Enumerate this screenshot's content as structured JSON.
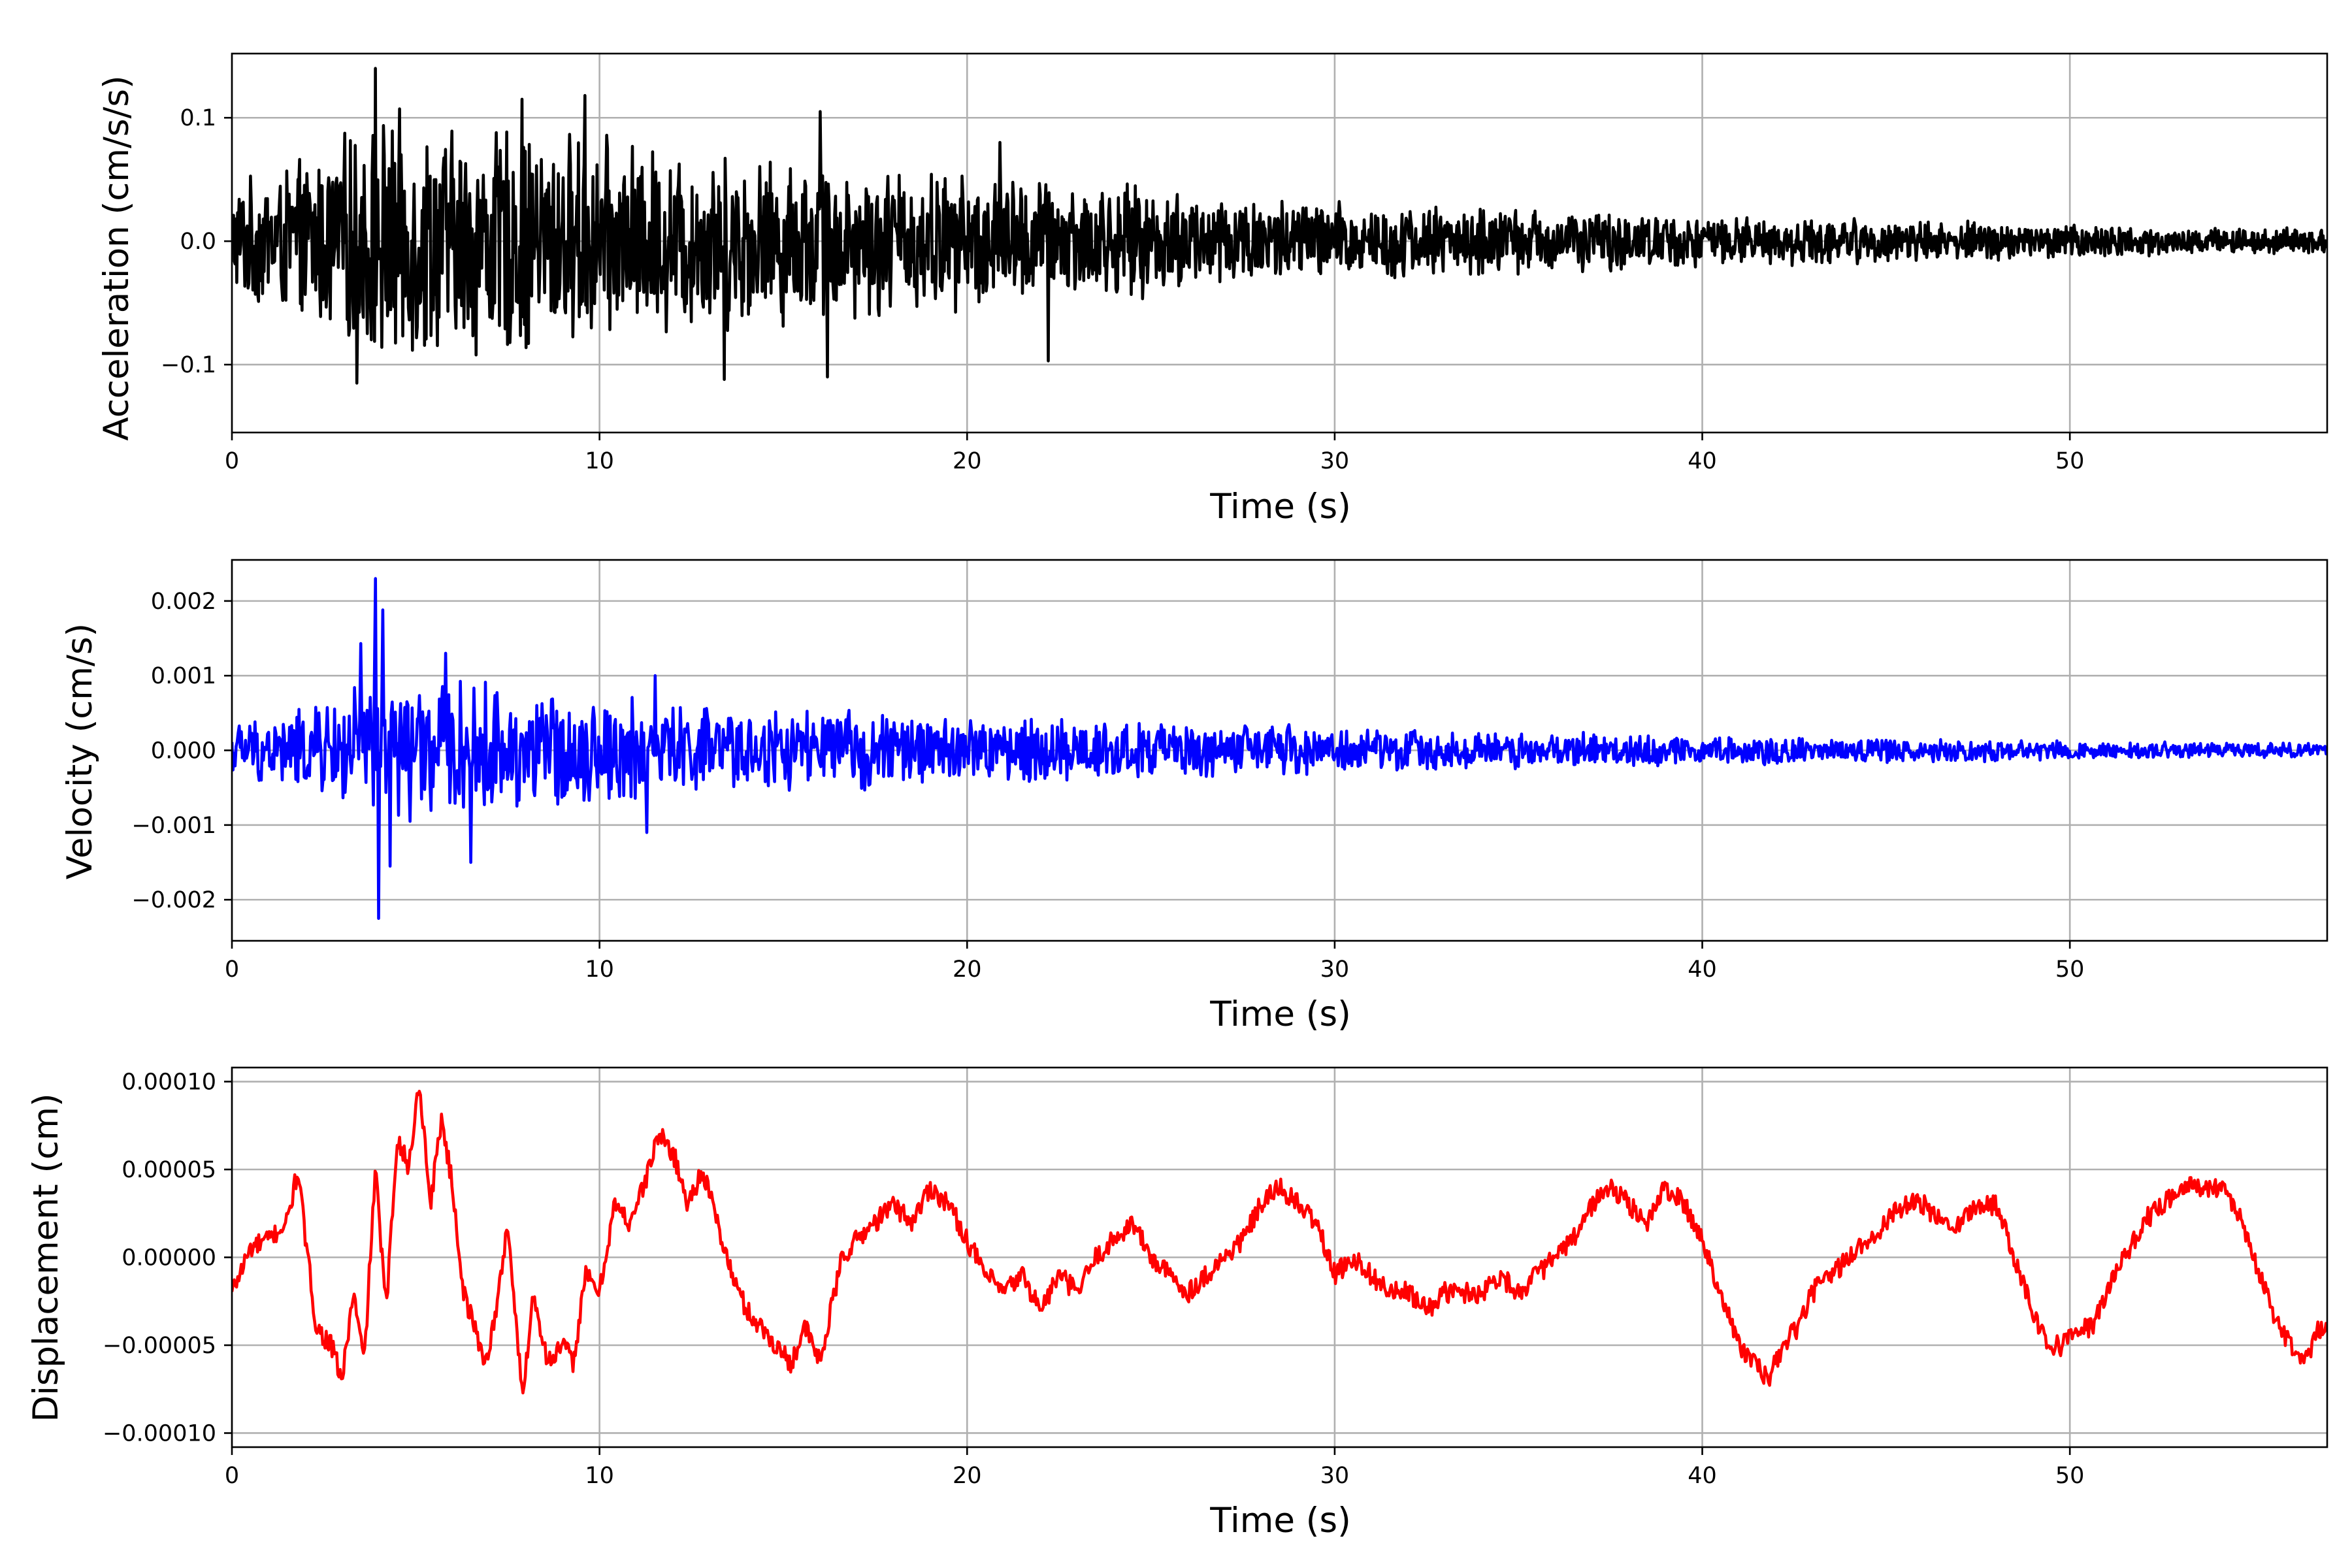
{
  "chart_data": [
    {
      "type": "line",
      "xlabel": "Time (s)",
      "ylabel": "Acceleration (cm/s/s)",
      "xlim": [
        0,
        57
      ],
      "ylim": [
        -0.155,
        0.152
      ],
      "xticks": [
        0,
        10,
        20,
        30,
        40,
        50
      ],
      "xtick_labels": [
        "0",
        "10",
        "20",
        "30",
        "40",
        "50"
      ],
      "yticks": [
        -0.1,
        0.0,
        0.1
      ],
      "ytick_labels": [
        "−0.1",
        "0.0",
        "0.1"
      ],
      "grid": true,
      "color": "#000000",
      "envelope": {
        "t": [
          0,
          2,
          4,
          6,
          8,
          10,
          12,
          14,
          16,
          18,
          20,
          22,
          24,
          26,
          28,
          30,
          32,
          34,
          36,
          38,
          40,
          42,
          44,
          46,
          48,
          50,
          52,
          54,
          56,
          57
        ],
        "amplitude": [
          0.05,
          0.07,
          0.11,
          0.1,
          0.1,
          0.09,
          0.08,
          0.075,
          0.07,
          0.065,
          0.06,
          0.055,
          0.05,
          0.045,
          0.04,
          0.035,
          0.032,
          0.03,
          0.028,
          0.025,
          0.022,
          0.02,
          0.02,
          0.018,
          0.017,
          0.015,
          0.013,
          0.012,
          0.011,
          0.01
        ]
      },
      "peaks": [
        {
          "t": 3.9,
          "value": 0.14
        },
        {
          "t": 3.4,
          "value": -0.115
        },
        {
          "t": 13.4,
          "value": -0.112
        },
        {
          "t": 16.2,
          "value": -0.11
        },
        {
          "t": 9.6,
          "value": 0.118
        },
        {
          "t": 7.9,
          "value": 0.115
        },
        {
          "t": 16.0,
          "value": 0.105
        },
        {
          "t": 20.9,
          "value": 0.08
        },
        {
          "t": 22.2,
          "value": -0.097
        }
      ]
    },
    {
      "type": "line",
      "xlabel": "Time (s)",
      "ylabel": "Velocity (cm/s)",
      "xlim": [
        0,
        57
      ],
      "ylim": [
        -0.00255,
        0.00255
      ],
      "xticks": [
        0,
        10,
        20,
        30,
        40,
        50
      ],
      "xtick_labels": [
        "0",
        "10",
        "20",
        "30",
        "40",
        "50"
      ],
      "yticks": [
        -0.002,
        -0.001,
        0.0,
        0.001,
        0.002
      ],
      "ytick_labels": [
        "−0.002",
        "−0.001",
        "0.000",
        "0.001",
        "0.002"
      ],
      "grid": true,
      "color": "#0000ff",
      "envelope": {
        "t": [
          0,
          2,
          4,
          6,
          8,
          10,
          12,
          14,
          16,
          18,
          20,
          22,
          24,
          26,
          28,
          30,
          32,
          34,
          36,
          38,
          40,
          42,
          44,
          46,
          48,
          50,
          52,
          54,
          56,
          57
        ],
        "amplitude": [
          0.0004,
          0.0006,
          0.0011,
          0.001,
          0.0009,
          0.0008,
          0.0007,
          0.0006,
          0.0006,
          0.00055,
          0.0005,
          0.00048,
          0.00045,
          0.0004,
          0.00038,
          0.00035,
          0.0003,
          0.00028,
          0.00026,
          0.00025,
          0.00022,
          0.0002,
          0.00019,
          0.00018,
          0.00017,
          0.00015,
          0.00013,
          0.00012,
          0.00011,
          0.0001
        ]
      },
      "peaks": [
        {
          "t": 3.9,
          "value": 0.0023
        },
        {
          "t": 4.0,
          "value": -0.00225
        },
        {
          "t": 4.1,
          "value": 0.00188
        },
        {
          "t": 4.3,
          "value": -0.00155
        },
        {
          "t": 3.5,
          "value": 0.00143
        },
        {
          "t": 6.5,
          "value": -0.0015
        },
        {
          "t": 5.8,
          "value": 0.0013
        },
        {
          "t": 11.5,
          "value": 0.001
        },
        {
          "t": 11.3,
          "value": -0.0011
        }
      ]
    },
    {
      "type": "line",
      "xlabel": "Time (s)",
      "ylabel": "Displacement (cm)",
      "xlim": [
        0,
        57
      ],
      "ylim": [
        -0.000108,
        0.000108
      ],
      "xticks": [
        0,
        10,
        20,
        30,
        40,
        50
      ],
      "xtick_labels": [
        "0",
        "10",
        "20",
        "30",
        "40",
        "50"
      ],
      "yticks": [
        -0.0001,
        -5e-05,
        0.0,
        5e-05,
        0.0001
      ],
      "ytick_labels": [
        "−0.00010",
        "−0.00005",
        "0.00000",
        "0.00005",
        "0.00010"
      ],
      "grid": true,
      "color": "#ff0000",
      "x": [
        0,
        0.5,
        1.0,
        1.5,
        1.8,
        2.0,
        2.3,
        2.7,
        3.0,
        3.3,
        3.6,
        3.9,
        4.2,
        4.5,
        4.8,
        5.1,
        5.4,
        5.7,
        6.0,
        6.3,
        6.6,
        6.9,
        7.2,
        7.5,
        7.9,
        8.2,
        8.6,
        9.0,
        9.3,
        9.6,
        10.0,
        10.4,
        10.8,
        11.2,
        11.6,
        12.0,
        12.4,
        12.8,
        13.2,
        13.6,
        14.0,
        14.4,
        14.8,
        15.2,
        15.6,
        16.0,
        16.3,
        16.6,
        17.0,
        17.5,
        18.0,
        18.5,
        19.0,
        19.5,
        20.0,
        20.5,
        21.0,
        21.5,
        22.0,
        22.5,
        23.0,
        23.5,
        24.0,
        24.5,
        25.0,
        25.5,
        26.0,
        26.5,
        27.0,
        27.5,
        28.0,
        28.5,
        29.0,
        29.5,
        30.0,
        30.5,
        31.0,
        31.5,
        32.0,
        32.5,
        33.0,
        33.5,
        34.0,
        34.5,
        35.0,
        35.5,
        36.0,
        36.5,
        37.0,
        37.5,
        38.0,
        38.5,
        39.0,
        39.5,
        40.0,
        40.5,
        41.0,
        41.4,
        41.8,
        42.2,
        42.6,
        43.0,
        43.5,
        44.0,
        44.5,
        45.0,
        45.5,
        46.0,
        46.5,
        47.0,
        47.5,
        48.0,
        48.5,
        49.0,
        49.4,
        49.8,
        50.2,
        50.6,
        51.0,
        51.5,
        52.0,
        52.5,
        53.0,
        53.5,
        54.0,
        54.5,
        55.0,
        55.5,
        56.0,
        56.4,
        56.8,
        57.0
      ],
      "y": [
        -2e-05,
        5e-06,
        1e-05,
        2e-05,
        5e-05,
        1e-05,
        -4e-05,
        -5e-05,
        -7e-05,
        -2e-05,
        -6e-05,
        5e-05,
        -3e-05,
        7e-05,
        5e-05,
        0.0001,
        3e-05,
        8e-05,
        4e-05,
        -2e-05,
        -4e-05,
        -6e-05,
        -3e-05,
        2e-05,
        -8e-05,
        -2e-05,
        -6e-05,
        -5e-05,
        -6e-05,
        -1e-05,
        -2e-05,
        3e-05,
        2e-05,
        4e-05,
        7e-05,
        6e-05,
        3e-05,
        5e-05,
        2e-05,
        -1e-05,
        -3e-05,
        -4e-05,
        -5e-05,
        -6e-05,
        -4e-05,
        -6e-05,
        -3e-05,
        0.0,
        1e-05,
        2e-05,
        3e-05,
        2e-05,
        4e-05,
        3e-05,
        1e-05,
        -1e-05,
        -2e-05,
        -1e-05,
        -3e-05,
        -1e-05,
        -2e-05,
        0.0,
        1e-05,
        2e-05,
        0.0,
        -1e-05,
        -2e-05,
        -1e-05,
        0.0,
        1e-05,
        3e-05,
        4e-05,
        3e-05,
        2e-05,
        -1e-05,
        0.0,
        -1e-05,
        -2e-05,
        -2e-05,
        -3e-05,
        -2e-05,
        -2e-05,
        -2e-05,
        -1e-05,
        -2e-05,
        -1e-05,
        0.0,
        1e-05,
        3e-05,
        4e-05,
        3e-05,
        2e-05,
        4e-05,
        3e-05,
        1e-05,
        -2e-05,
        -5e-05,
        -6e-05,
        -7e-05,
        -5e-05,
        -4e-05,
        -2e-05,
        -1e-05,
        0.0,
        1e-05,
        2e-05,
        3e-05,
        3e-05,
        2e-05,
        2e-05,
        3e-05,
        3e-05,
        0.0,
        -3e-05,
        -5e-05,
        -5e-05,
        -4e-05,
        -4e-05,
        -2e-05,
        0.0,
        2e-05,
        3e-05,
        4e-05,
        4e-05,
        4e-05,
        3e-05,
        0.0,
        -3e-05,
        -5e-05,
        -6e-05,
        -4e-05,
        -4e-05
      ]
    }
  ]
}
